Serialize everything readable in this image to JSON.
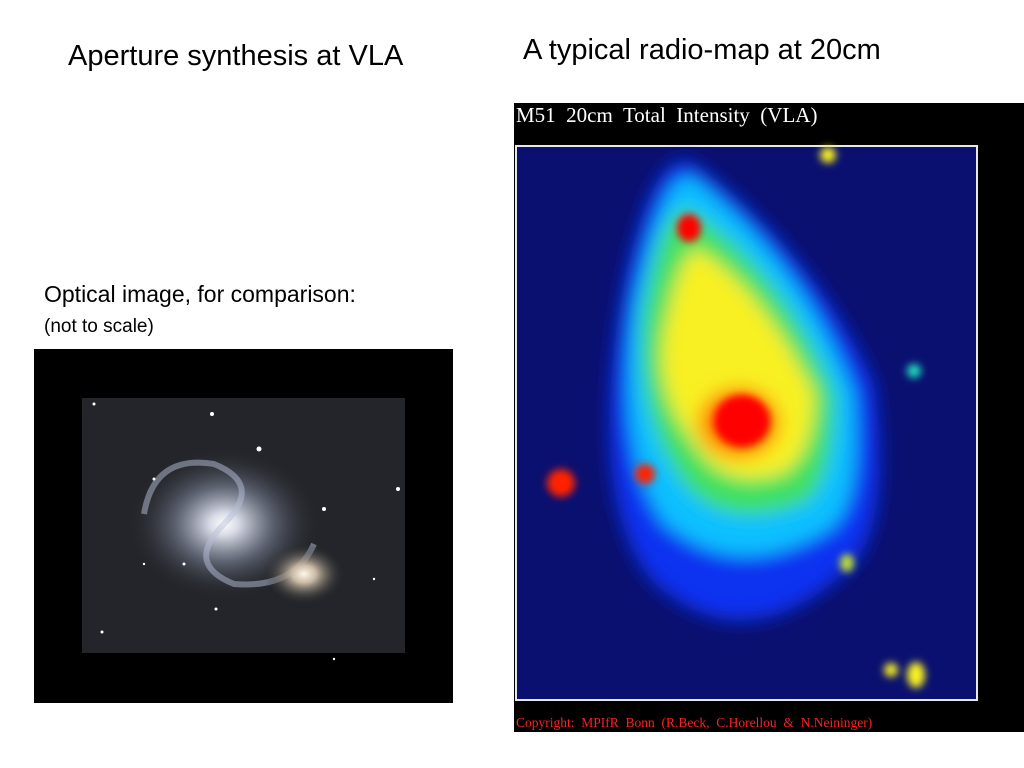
{
  "slide": {
    "left_title": "Aperture synthesis at VLA",
    "right_title": "A typical radio-map at 20cm",
    "optical_caption": "Optical image, for comparison:",
    "optical_note": "(not to scale)",
    "radio_map": {
      "title": "M51  20cm  Total  Intensity  (VLA)",
      "copyright": "Copyright:  MPIfR  Bonn  (R.Beck,  C.Horellou  &  N.Neininger)"
    }
  }
}
